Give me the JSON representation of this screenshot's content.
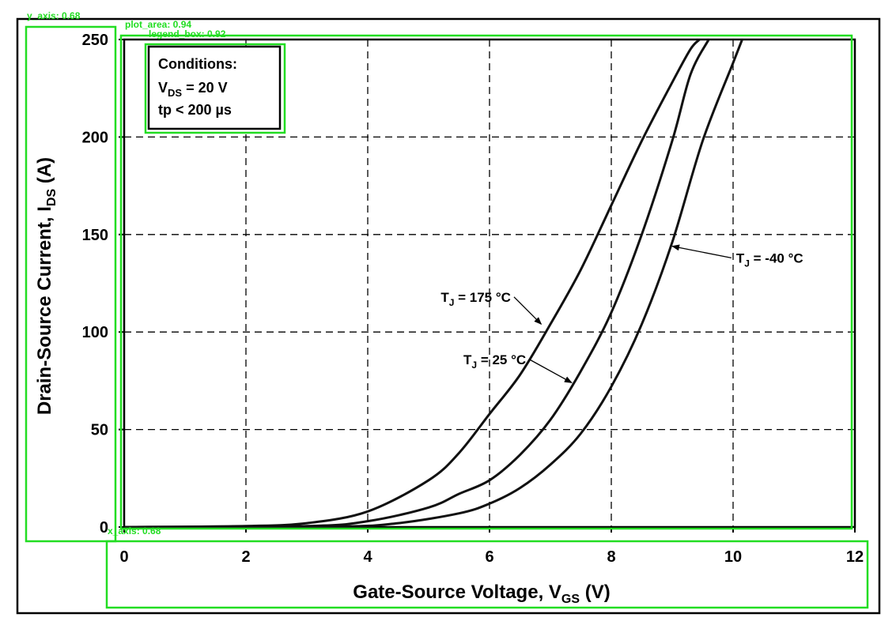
{
  "chart_data": {
    "type": "line",
    "xlabel": {
      "main": "Gate-Source Voltage, V",
      "sub": "GS",
      "unit": " (V)"
    },
    "ylabel": {
      "main": "Drain-Source Current, I",
      "sub": "DS",
      "unit": " (A)"
    },
    "xlim": [
      0,
      12
    ],
    "ylim": [
      0,
      250
    ],
    "x_ticks": [
      0,
      2,
      4,
      6,
      8,
      10,
      12
    ],
    "y_ticks": [
      0,
      50,
      100,
      150,
      200,
      250
    ],
    "grid": true,
    "legend": {
      "position": "top-left",
      "lines": [
        {
          "main": "Conditions:",
          "sub": "",
          "rest": ""
        },
        {
          "main": "V",
          "sub": "DS",
          "rest": " = 20 V"
        },
        {
          "main": "tp < 200 µs",
          "sub": "",
          "rest": ""
        }
      ]
    },
    "series": [
      {
        "id": "tj175",
        "label_main": "T",
        "label_sub": "J",
        "label_rest": " = 175 °C",
        "x": [
          0,
          2,
          3,
          4,
          5,
          5.5,
          6,
          6.5,
          7,
          7.5,
          8,
          8.5,
          9,
          9.3,
          9.45
        ],
        "y": [
          0,
          0.5,
          2,
          8,
          24,
          38,
          58,
          78,
          104,
          132,
          165,
          198,
          228,
          245,
          250
        ]
      },
      {
        "id": "tj25",
        "label_main": "T",
        "label_sub": "J",
        "label_rest": " = 25 °C",
        "x": [
          0,
          3,
          4,
          5,
          5.5,
          6,
          6.5,
          7,
          7.5,
          8,
          8.5,
          9,
          9.3,
          9.6
        ],
        "y": [
          0,
          0.5,
          3,
          10,
          17,
          24,
          37,
          55,
          80,
          110,
          150,
          198,
          232,
          250
        ]
      },
      {
        "id": "tjm40",
        "label_main": "T",
        "label_sub": "J",
        "label_rest": " = -40 °C",
        "x": [
          0,
          3.5,
          4.5,
          5.5,
          6,
          6.5,
          7,
          7.5,
          8,
          8.5,
          9,
          9.5,
          10,
          10.15
        ],
        "y": [
          0,
          0.3,
          2,
          7,
          12,
          20,
          32,
          48,
          72,
          104,
          146,
          198,
          238,
          250
        ]
      }
    ],
    "annotations": [
      {
        "series": "tj175",
        "text_x": 6.35,
        "text_y": 118,
        "arrow_to_x": 6.85,
        "arrow_to_y": 104
      },
      {
        "series": "tj25",
        "text_x": 6.6,
        "text_y": 86,
        "arrow_to_x": 7.35,
        "arrow_to_y": 74
      },
      {
        "series": "tjm40",
        "text_x": 10.05,
        "text_y": 138,
        "arrow_to_x": 9.0,
        "arrow_to_y": 144
      }
    ]
  },
  "detections": [
    {
      "id": "y_axis",
      "label": "y_axis: 0.68"
    },
    {
      "id": "plot_area",
      "label": "plot_area: 0.94"
    },
    {
      "id": "legend_box",
      "label": "legend_box: 0.92"
    },
    {
      "id": "x_axis",
      "label": "x_axis: 0.68"
    }
  ]
}
